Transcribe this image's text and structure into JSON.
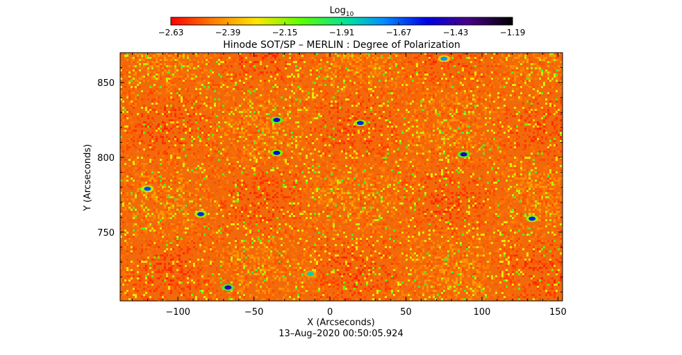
{
  "chart_data": {
    "type": "heatmap",
    "title": "Hinode SOT/SP – MERLIN : Degree of Polarization",
    "xlabel": "X (Arcseconds)",
    "ylabel": "Y (Arcseconds)",
    "timestamp": "13–Aug–2020 00:50:05.924",
    "xlim": [
      -138,
      153
    ],
    "ylim": [
      704,
      870
    ],
    "x_ticks": [
      -100,
      -50,
      0,
      50,
      100,
      150
    ],
    "x_tick_labels": [
      "−100",
      "−50",
      "0",
      "50",
      "100",
      "150"
    ],
    "y_ticks": [
      750,
      800,
      850
    ],
    "y_tick_labels": [
      "750",
      "800",
      "850"
    ],
    "colorbar": {
      "label_base": "Log",
      "label_sub": "10",
      "colormap": "rainbow (red → yellow → green → cyan → blue → purple → black)",
      "range": [
        -2.63,
        -1.19
      ],
      "ticks": [
        -2.63,
        -2.39,
        -2.15,
        -1.91,
        -1.67,
        -1.43,
        -1.19
      ],
      "tick_labels": [
        "−2.63",
        "−2.39",
        "−2.15",
        "−1.91",
        "−1.67",
        "−1.43",
        "−1.19"
      ]
    },
    "typical_value": -2.55,
    "features": [
      {
        "x": -35,
        "y": 825,
        "value": -1.5
      },
      {
        "x": -35,
        "y": 803,
        "value": -1.55
      },
      {
        "x": -67,
        "y": 713,
        "value": -1.45
      },
      {
        "x": -85,
        "y": 762,
        "value": -1.6
      },
      {
        "x": 20,
        "y": 823,
        "value": -1.6
      },
      {
        "x": 88,
        "y": 802,
        "value": -1.5
      },
      {
        "x": 133,
        "y": 759,
        "value": -1.6
      },
      {
        "x": -120,
        "y": 779,
        "value": -1.65
      },
      {
        "x": 75,
        "y": 866,
        "value": -1.75
      },
      {
        "x": -13,
        "y": 722,
        "value": -1.85
      }
    ]
  }
}
